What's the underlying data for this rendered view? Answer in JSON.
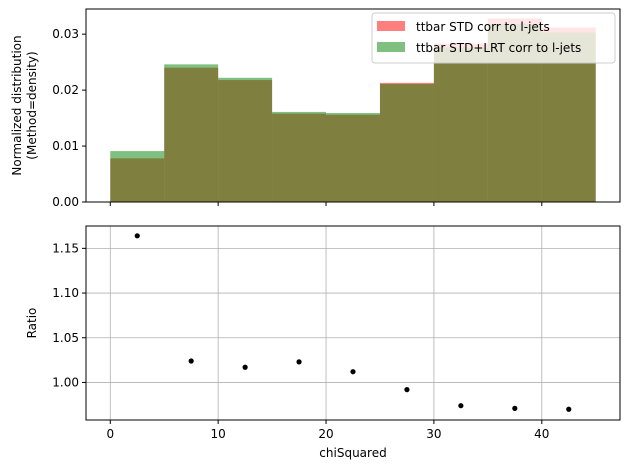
{
  "chart_data": [
    {
      "type": "bar",
      "panel": "top",
      "ylabel_lines": [
        "Normalized distribution",
        "(Method=density)"
      ],
      "x_bin_edges": [
        0,
        5,
        10,
        15,
        20,
        25,
        30,
        35,
        40,
        45
      ],
      "xlim": [
        -2.25,
        47.25
      ],
      "ylim": [
        0,
        0.0345
      ],
      "yticks": [
        0.0,
        0.01,
        0.02,
        0.03
      ],
      "ytick_labels": [
        "0.00",
        "0.01",
        "0.02",
        "0.03"
      ],
      "xticks": [
        0,
        10,
        20,
        30,
        40
      ],
      "legend_position": "top-right",
      "series": [
        {
          "name": "ttbar STD corr to l-jets",
          "color": "#ff0000",
          "alpha": 0.5,
          "values": [
            0.0078,
            0.024,
            0.0218,
            0.0158,
            0.0156,
            0.0213,
            0.0283,
            0.0328,
            0.0312
          ]
        },
        {
          "name": "ttbar STD+LRT corr to l-jets",
          "color": "#008000",
          "alpha": 0.5,
          "values": [
            0.0091,
            0.0246,
            0.0222,
            0.0161,
            0.0159,
            0.0211,
            0.0276,
            0.0318,
            0.0303
          ]
        }
      ]
    },
    {
      "type": "scatter",
      "panel": "bottom",
      "xlabel": "chiSquared",
      "ylabel": "Ratio",
      "xlim": [
        -2.25,
        47.25
      ],
      "ylim": [
        0.958,
        1.175
      ],
      "xticks": [
        0,
        10,
        20,
        30,
        40
      ],
      "xtick_labels": [
        "0",
        "10",
        "20",
        "30",
        "40"
      ],
      "yticks": [
        1.0,
        1.05,
        1.1,
        1.15
      ],
      "ytick_labels": [
        "1.00",
        "1.05",
        "1.10",
        "1.15"
      ],
      "grid": true,
      "marker_color": "#000000",
      "x": [
        2.5,
        7.5,
        12.5,
        17.5,
        22.5,
        27.5,
        32.5,
        37.5,
        42.5
      ],
      "y": [
        1.164,
        1.024,
        1.017,
        1.023,
        1.012,
        0.992,
        0.974,
        0.971,
        0.97
      ]
    }
  ]
}
